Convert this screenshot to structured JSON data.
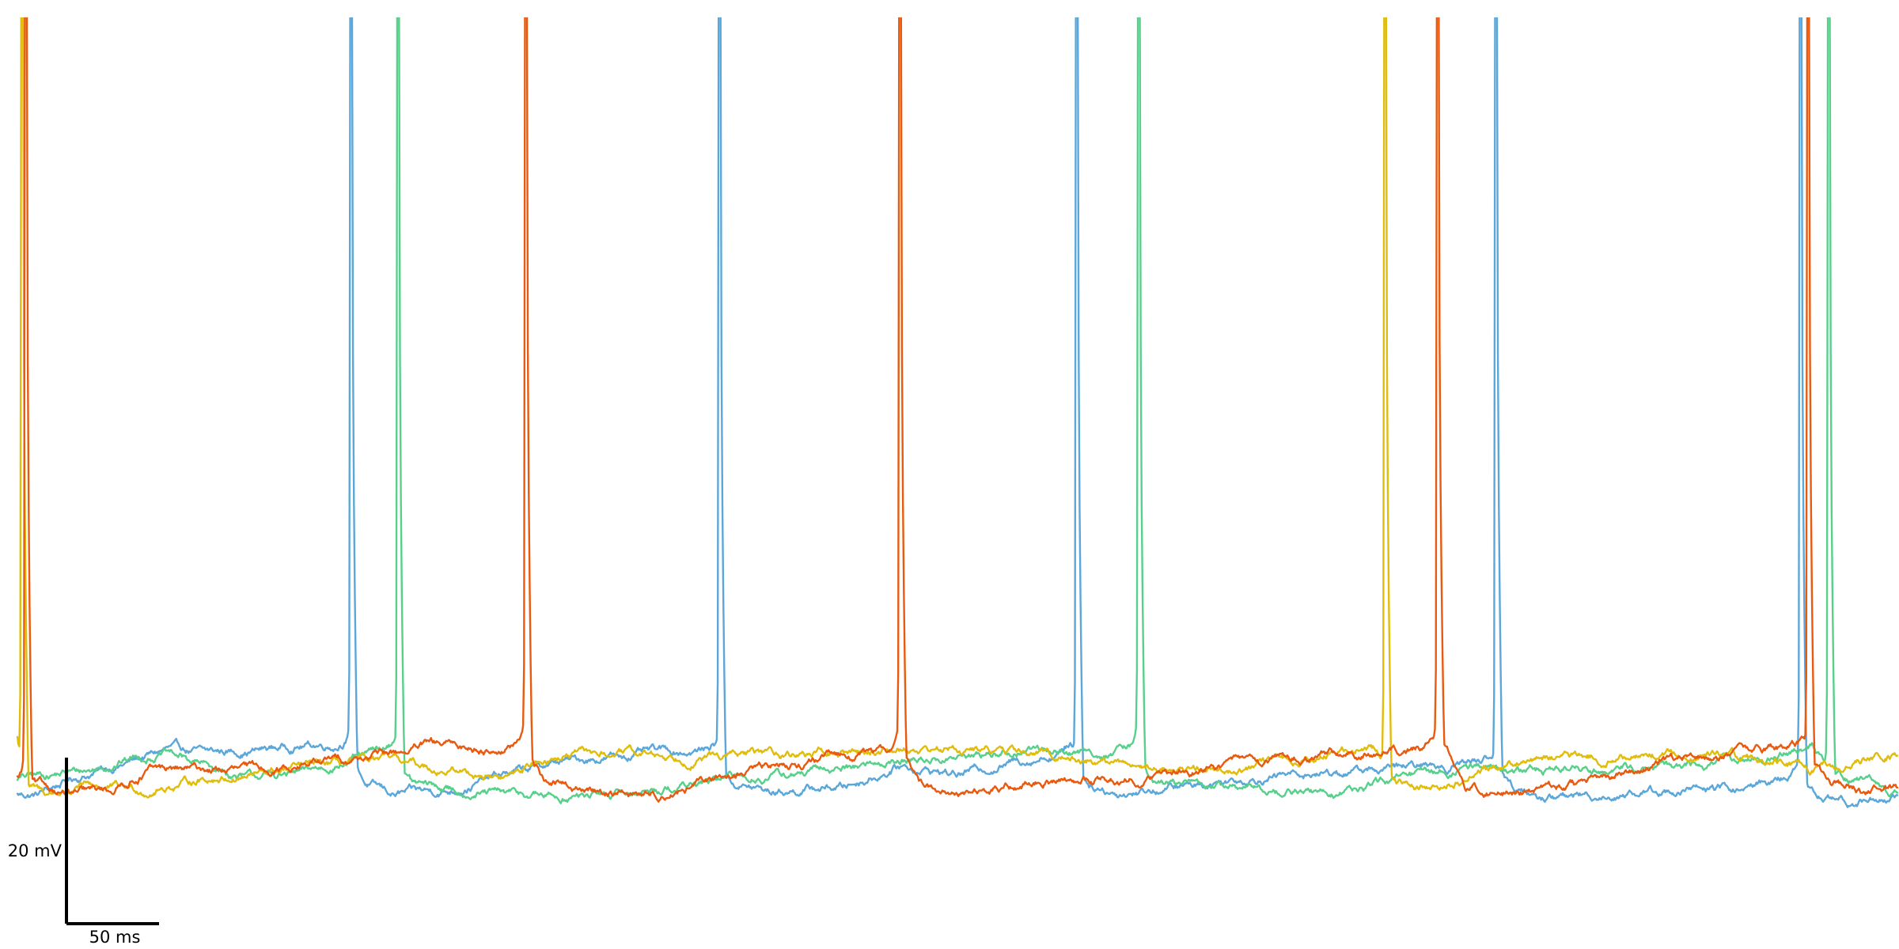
{
  "chart_data": {
    "type": "line",
    "title": "",
    "xlabel": "",
    "ylabel": "",
    "xlim": [
      0,
      1000
    ],
    "ylim": [
      -80,
      20
    ],
    "grid": false,
    "legend": "none",
    "scalebars": {
      "time_value_ms": 50,
      "time_label": "50 ms",
      "voltage_value_mv": 20,
      "voltage_label": "20 mV"
    },
    "series": [
      {
        "color": "#5ba7d9",
        "resting_mv": -73.5,
        "baseline_mv": [
          [
            0,
            -74.5
          ],
          [
            10,
            -74.5
          ],
          [
            30,
            -72.5
          ],
          [
            60,
            -70.5
          ],
          [
            80,
            -69.0
          ],
          [
            100,
            -69.5
          ],
          [
            130,
            -69.0
          ],
          [
            150,
            -68.5
          ],
          [
            175,
            -68.3
          ],
          [
            185,
            -73.0
          ],
          [
            200,
            -74.5
          ],
          [
            230,
            -74.0
          ],
          [
            260,
            -72.0
          ],
          [
            290,
            -70.5
          ],
          [
            330,
            -69.5
          ],
          [
            370,
            -69.0
          ],
          [
            380,
            -73.0
          ],
          [
            400,
            -74.2
          ],
          [
            440,
            -73.5
          ],
          [
            470,
            -71.0
          ],
          [
            500,
            -72.0
          ],
          [
            530,
            -70.5
          ],
          [
            560,
            -69.0
          ],
          [
            570,
            -73.0
          ],
          [
            585,
            -74.3
          ],
          [
            620,
            -73.5
          ],
          [
            650,
            -72.5
          ],
          [
            680,
            -72.0
          ],
          [
            720,
            -71.5
          ],
          [
            760,
            -71.0
          ],
          [
            780,
            -70.0
          ],
          [
            795,
            -73.5
          ],
          [
            810,
            -75.0
          ],
          [
            840,
            -74.5
          ],
          [
            880,
            -74.0
          ],
          [
            920,
            -73.8
          ],
          [
            945,
            -72.0
          ],
          [
            955,
            -74.5
          ],
          [
            975,
            -75.5
          ],
          [
            1000,
            -74.5
          ]
        ],
        "spike_times_ms": [
          177,
          373,
          563,
          786,
          948
        ]
      },
      {
        "color": "#58d08c",
        "resting_mv": -73.5,
        "baseline_mv": [
          [
            0,
            -72.5
          ],
          [
            20,
            -72.0
          ],
          [
            40,
            -71.5
          ],
          [
            60,
            -70.0
          ],
          [
            80,
            -69.5
          ],
          [
            100,
            -71.0
          ],
          [
            120,
            -72.5
          ],
          [
            150,
            -72.0
          ],
          [
            175,
            -70.5
          ],
          [
            190,
            -69.5
          ],
          [
            200,
            -69.0
          ],
          [
            210,
            -73.0
          ],
          [
            230,
            -74.0
          ],
          [
            260,
            -74.5
          ],
          [
            290,
            -74.8
          ],
          [
            320,
            -74.5
          ],
          [
            350,
            -73.5
          ],
          [
            380,
            -72.5
          ],
          [
            420,
            -72.0
          ],
          [
            460,
            -70.5
          ],
          [
            500,
            -70.0
          ],
          [
            540,
            -69.0
          ],
          [
            580,
            -69.5
          ],
          [
            595,
            -69.0
          ],
          [
            605,
            -73.0
          ],
          [
            640,
            -73.5
          ],
          [
            670,
            -74.0
          ],
          [
            700,
            -74.5
          ],
          [
            720,
            -73.5
          ],
          [
            740,
            -72.5
          ],
          [
            760,
            -71.5
          ],
          [
            780,
            -71.0
          ],
          [
            800,
            -71.5
          ],
          [
            850,
            -71.0
          ],
          [
            880,
            -71.5
          ],
          [
            940,
            -69.5
          ],
          [
            955,
            -68.5
          ],
          [
            963,
            -72.0
          ],
          [
            980,
            -73.0
          ],
          [
            1000,
            -74.5
          ]
        ],
        "spike_times_ms": [
          202,
          596,
          963
        ]
      },
      {
        "color": "#e0bd0c",
        "resting_mv": -73.5,
        "baseline_mv": [
          [
            0,
            -68.5
          ],
          [
            2,
            -73.0
          ],
          [
            15,
            -74.5
          ],
          [
            40,
            -73.5
          ],
          [
            70,
            -74.0
          ],
          [
            100,
            -72.5
          ],
          [
            130,
            -72.0
          ],
          [
            160,
            -71.0
          ],
          [
            200,
            -70.5
          ],
          [
            230,
            -71.5
          ],
          [
            260,
            -72.5
          ],
          [
            280,
            -70.0
          ],
          [
            320,
            -69.5
          ],
          [
            360,
            -70.0
          ],
          [
            400,
            -69.5
          ],
          [
            440,
            -69.5
          ],
          [
            470,
            -68.8
          ],
          [
            500,
            -69.0
          ],
          [
            540,
            -69.5
          ],
          [
            580,
            -70.5
          ],
          [
            620,
            -71.5
          ],
          [
            660,
            -71.0
          ],
          [
            700,
            -69.5
          ],
          [
            720,
            -68.5
          ],
          [
            730,
            -72.5
          ],
          [
            745,
            -73.5
          ],
          [
            770,
            -72.5
          ],
          [
            800,
            -70.0
          ],
          [
            840,
            -70.0
          ],
          [
            880,
            -69.5
          ],
          [
            920,
            -70.0
          ],
          [
            960,
            -71.5
          ],
          [
            1000,
            -69.5
          ]
        ],
        "spike_times_ms": [
          2,
          727
        ]
      },
      {
        "color": "#e85a0f",
        "resting_mv": -73.5,
        "baseline_mv": [
          [
            0,
            -73.0
          ],
          [
            5,
            -72.5
          ],
          [
            10,
            -73.5
          ],
          [
            30,
            -74.5
          ],
          [
            50,
            -74.0
          ],
          [
            70,
            -71.5
          ],
          [
            100,
            -71.5
          ],
          [
            130,
            -71.5
          ],
          [
            160,
            -70.5
          ],
          [
            200,
            -69.5
          ],
          [
            220,
            -68.5
          ],
          [
            250,
            -69.0
          ],
          [
            270,
            -68.5
          ],
          [
            280,
            -72.5
          ],
          [
            300,
            -74.0
          ],
          [
            340,
            -74.5
          ],
          [
            360,
            -73.5
          ],
          [
            390,
            -71.5
          ],
          [
            420,
            -70.5
          ],
          [
            450,
            -69.5
          ],
          [
            470,
            -69.0
          ],
          [
            480,
            -73.0
          ],
          [
            500,
            -74.5
          ],
          [
            530,
            -73.5
          ],
          [
            560,
            -72.5
          ],
          [
            600,
            -72.5
          ],
          [
            640,
            -71.0
          ],
          [
            680,
            -70.0
          ],
          [
            720,
            -69.5
          ],
          [
            750,
            -69.0
          ],
          [
            760,
            -68.5
          ],
          [
            770,
            -73.0
          ],
          [
            790,
            -74.5
          ],
          [
            820,
            -73.5
          ],
          [
            850,
            -72.5
          ],
          [
            880,
            -70.5
          ],
          [
            910,
            -69.5
          ],
          [
            935,
            -69.0
          ],
          [
            950,
            -68.5
          ],
          [
            965,
            -73.0
          ],
          [
            980,
            -74.0
          ],
          [
            1000,
            -74.0
          ]
        ],
        "spike_times_ms": [
          4,
          270,
          469,
          755,
          952
        ]
      }
    ]
  }
}
